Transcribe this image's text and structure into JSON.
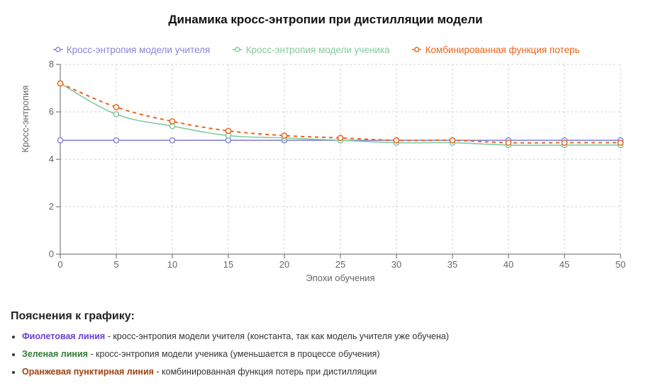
{
  "chart_data": {
    "type": "line",
    "title": "Динамика кросс-энтропии при дистилляции модели",
    "xlabel": "Эпохи обучения",
    "ylabel": "Кросс-энтропия",
    "x": [
      0,
      5,
      10,
      15,
      20,
      25,
      30,
      35,
      40,
      45,
      50
    ],
    "xlim": [
      0,
      50
    ],
    "ylim": [
      0,
      8
    ],
    "xticks": [
      "0",
      "5",
      "10",
      "15",
      "20",
      "25",
      "30",
      "35",
      "40",
      "45",
      "50"
    ],
    "yticks": [
      "0",
      "2",
      "4",
      "6",
      "8"
    ],
    "grid": true,
    "legend_position": "top",
    "series": [
      {
        "name": "Кросс-энтропия модели учителя",
        "color": "#8884d8",
        "dashed": false,
        "values": [
          4.8,
          4.8,
          4.8,
          4.8,
          4.8,
          4.8,
          4.8,
          4.8,
          4.8,
          4.8,
          4.8
        ]
      },
      {
        "name": "Кросс-энтропия модели ученика",
        "color": "#82ca9d",
        "dashed": false,
        "values": [
          7.2,
          5.9,
          5.4,
          5.0,
          4.9,
          4.8,
          4.7,
          4.7,
          4.6,
          4.6,
          4.6
        ]
      },
      {
        "name": "Комбинированная функция потерь",
        "color": "#e8641b",
        "dashed": true,
        "values": [
          7.2,
          6.2,
          5.6,
          5.2,
          5.0,
          4.9,
          4.8,
          4.8,
          4.7,
          4.7,
          4.7
        ]
      }
    ]
  },
  "explanation": {
    "title": "Пояснения к графику:",
    "items": [
      {
        "keyword": "Фиолетовая линия",
        "text": " - кросс-энтропия модели учителя (константа, так как модель учителя уже обучена)",
        "color": "#6b3fd1"
      },
      {
        "keyword": "Зеленая линия",
        "text": " - кросс-энтропия модели ученика (уменьшается в процессе обучения)",
        "color": "#2e7d32"
      },
      {
        "keyword": "Оранжевая пунктирная линия",
        "text": " - комбинированная функция потерь при дистилляции",
        "color": "#a0400e"
      }
    ]
  }
}
